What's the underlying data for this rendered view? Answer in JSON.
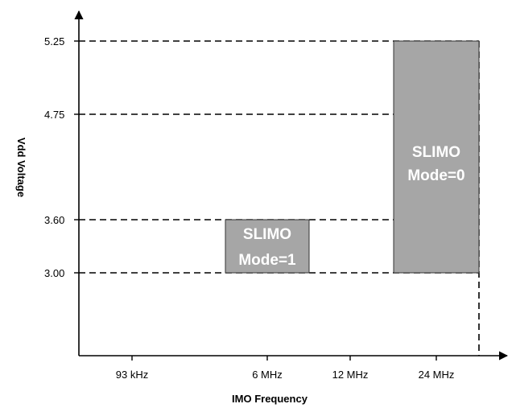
{
  "chart_data": {
    "type": "bar",
    "xlabel": "IMO Frequency",
    "ylabel": "Vdd Voltage",
    "x_ticks": [
      "93 kHz",
      "6 MHz",
      "12 MHz",
      "24 MHz"
    ],
    "y_ticks": [
      "3.00",
      "3.60",
      "4.75",
      "5.25"
    ],
    "grid": "dashed reference lines at tick values",
    "regions": [
      {
        "label_line1": "SLIMO",
        "label_line2": "Mode=1",
        "x": "6 MHz",
        "y_range": [
          3.0,
          3.6
        ],
        "color": "#a6a6a6"
      },
      {
        "label_line1": "SLIMO",
        "label_line2": "Mode=0",
        "x": "24 MHz",
        "y_range": [
          3.0,
          5.25
        ],
        "color": "#a6a6a6"
      }
    ]
  }
}
